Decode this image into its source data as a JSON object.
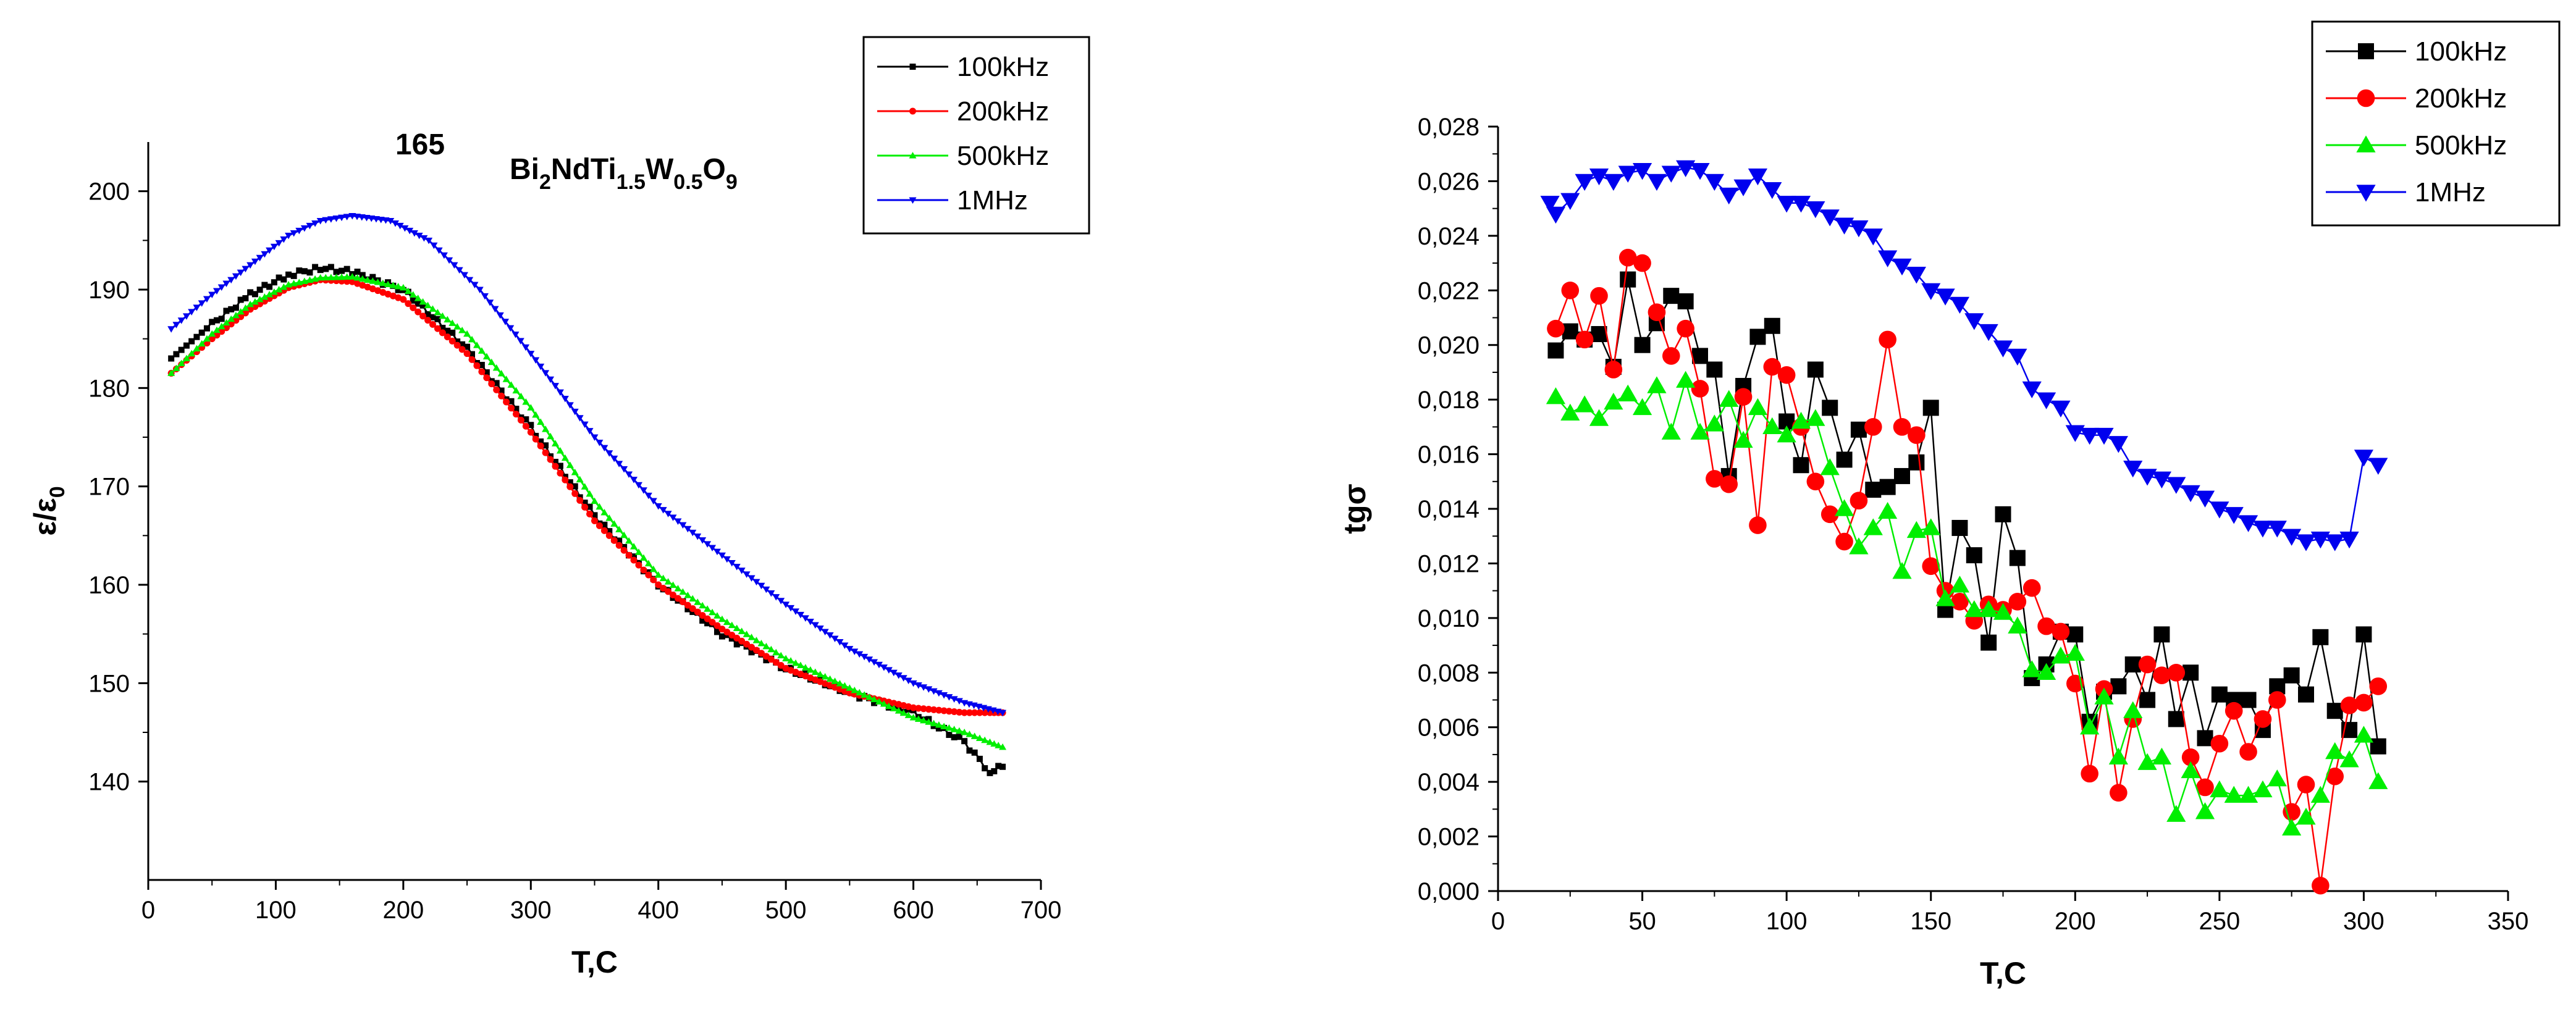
{
  "chart_data": [
    {
      "type": "scatter",
      "title_number": "165",
      "formula": {
        "parts": [
          {
            "t": "Bi",
            "sub": false
          },
          {
            "t": "2",
            "sub": true
          },
          {
            "t": "NdTi",
            "sub": false
          },
          {
            "t": "1.5",
            "sub": true
          },
          {
            "t": "W",
            "sub": false
          },
          {
            "t": "0.5",
            "sub": true
          },
          {
            "t": "O",
            "sub": false
          },
          {
            "t": "9",
            "sub": true
          }
        ]
      },
      "xlabel": "T,C",
      "ylabel_main": "ε/ε",
      "ylabel_sub": "0",
      "xlim": [
        0,
        700
      ],
      "ylim": [
        130,
        205
      ],
      "xticks": [
        0,
        100,
        200,
        300,
        400,
        500,
        600,
        700
      ],
      "yticks": [
        140,
        150,
        160,
        170,
        180,
        190,
        200
      ],
      "xticklabels": [
        "0",
        "100",
        "200",
        "300",
        "400",
        "500",
        "600",
        "700"
      ],
      "yticklabels": [
        "140",
        "150",
        "160",
        "170",
        "180",
        "190",
        "200"
      ],
      "legend_position": "top-right",
      "series": [
        {
          "name": "100kHz",
          "color": "#000000",
          "marker": "square",
          "x": [
            18,
            50,
            80,
            110,
            135,
            160,
            200,
            250,
            300,
            350,
            400,
            450,
            500,
            550,
            600,
            640,
            660,
            670
          ],
          "y": [
            183,
            186.5,
            189.5,
            191.5,
            192.2,
            191.8,
            190,
            184,
            176,
            167,
            160,
            155,
            151.5,
            149,
            147,
            144,
            141,
            141.5
          ]
        },
        {
          "name": "200kHz",
          "color": "#ff0000",
          "marker": "circle",
          "x": [
            18,
            50,
            80,
            110,
            135,
            160,
            200,
            250,
            300,
            350,
            400,
            450,
            500,
            550,
            600,
            640,
            660,
            670
          ],
          "y": [
            181.5,
            185,
            188,
            190.2,
            191,
            190.8,
            189,
            183.5,
            175.5,
            166.5,
            160,
            155.5,
            151.5,
            149,
            147.5,
            147,
            147,
            147
          ]
        },
        {
          "name": "500kHz",
          "color": "#00ee00",
          "marker": "triangle-up",
          "x": [
            18,
            50,
            80,
            110,
            135,
            160,
            200,
            250,
            300,
            350,
            400,
            450,
            500,
            550,
            600,
            640,
            660,
            670
          ],
          "y": [
            181.5,
            185.5,
            188.5,
            190.5,
            191.2,
            191.3,
            190.2,
            185.5,
            178,
            168.5,
            161,
            156.5,
            152.5,
            149.5,
            146.5,
            145,
            144,
            143.5
          ]
        },
        {
          "name": "1MHz",
          "color": "#0000ee",
          "marker": "triangle-down",
          "x": [
            18,
            50,
            80,
            110,
            135,
            160,
            190,
            220,
            260,
            300,
            350,
            400,
            450,
            500,
            550,
            600,
            640,
            670
          ],
          "y": [
            186,
            189.5,
            192.5,
            195.5,
            197,
            197.5,
            197,
            195,
            190,
            183.5,
            175,
            168,
            163,
            158,
            153.5,
            150,
            148,
            147
          ]
        }
      ]
    },
    {
      "type": "scatter",
      "xlabel": "T,C",
      "ylabel": "tgσ",
      "xlim": [
        0,
        350
      ],
      "ylim": [
        0,
        0.028
      ],
      "xticks": [
        0,
        50,
        100,
        150,
        200,
        250,
        300,
        350
      ],
      "yticks": [
        0,
        0.002,
        0.004,
        0.006,
        0.008,
        0.01,
        0.012,
        0.014,
        0.016,
        0.018,
        0.02,
        0.022,
        0.024,
        0.026,
        0.028
      ],
      "xticklabels": [
        "0",
        "50",
        "100",
        "150",
        "200",
        "250",
        "300",
        "350"
      ],
      "yticklabels": [
        "0,000",
        "0,002",
        "0,004",
        "0,006",
        "0,008",
        "0,010",
        "0,012",
        "0,014",
        "0,016",
        "0,018",
        "0,020",
        "0,022",
        "0,024",
        "0,026",
        "0,028"
      ],
      "legend_position": "top-right",
      "series": [
        {
          "name": "100kHz",
          "color": "#000000",
          "marker": "square",
          "x": [
            20,
            25,
            30,
            35,
            40,
            45,
            50,
            55,
            60,
            65,
            70,
            75,
            80,
            85,
            90,
            95,
            100,
            105,
            110,
            115,
            120,
            125,
            130,
            135,
            140,
            145,
            150,
            155,
            160,
            165,
            170,
            175,
            180,
            185,
            190,
            195,
            200,
            205,
            210,
            215,
            220,
            225,
            230,
            235,
            240,
            245,
            250,
            255,
            260,
            265,
            270,
            275,
            280,
            285,
            290,
            295,
            300,
            305
          ],
          "y": [
            0.0198,
            0.0205,
            0.0202,
            0.0204,
            0.0192,
            0.0224,
            0.02,
            0.0208,
            0.0218,
            0.0216,
            0.0196,
            0.0191,
            0.0152,
            0.0185,
            0.0203,
            0.0207,
            0.0172,
            0.0156,
            0.0191,
            0.0177,
            0.0158,
            0.0169,
            0.0147,
            0.0148,
            0.0152,
            0.0157,
            0.0177,
            0.0103,
            0.0133,
            0.0123,
            0.0091,
            0.0138,
            0.0122,
            0.0078,
            0.0083,
            0.0095,
            0.0094,
            0.0062,
            0.0073,
            0.0075,
            0.0083,
            0.007,
            0.0094,
            0.0063,
            0.008,
            0.0056,
            0.0072,
            0.007,
            0.007,
            0.0059,
            0.0075,
            0.0079,
            0.0072,
            0.0093,
            0.0066,
            0.0059,
            0.0094,
            0.0053
          ]
        },
        {
          "name": "200kHz",
          "color": "#ff0000",
          "marker": "circle",
          "x": [
            20,
            25,
            30,
            35,
            40,
            45,
            50,
            55,
            60,
            65,
            70,
            75,
            80,
            85,
            90,
            95,
            100,
            105,
            110,
            115,
            120,
            125,
            130,
            135,
            140,
            145,
            150,
            155,
            160,
            165,
            170,
            175,
            180,
            185,
            190,
            195,
            200,
            205,
            210,
            215,
            220,
            225,
            230,
            235,
            240,
            245,
            250,
            255,
            260,
            265,
            270,
            275,
            280,
            285,
            290,
            295,
            300,
            305
          ],
          "y": [
            0.0206,
            0.022,
            0.0202,
            0.0218,
            0.0191,
            0.0232,
            0.023,
            0.0212,
            0.0196,
            0.0206,
            0.0184,
            0.0151,
            0.0149,
            0.0181,
            0.0134,
            0.0192,
            0.0189,
            0.017,
            0.015,
            0.0138,
            0.0128,
            0.0143,
            0.017,
            0.0202,
            0.017,
            0.0167,
            0.0119,
            0.011,
            0.0106,
            0.0099,
            0.0105,
            0.0103,
            0.0106,
            0.0111,
            0.0097,
            0.0095,
            0.0076,
            0.0043,
            0.0074,
            0.0036,
            0.0063,
            0.0083,
            0.0079,
            0.008,
            0.0049,
            0.0038,
            0.0054,
            0.0066,
            0.0051,
            0.0063,
            0.007,
            0.0029,
            0.0039,
            0.0002,
            0.0042,
            0.0068,
            0.0069,
            0.0075
          ]
        },
        {
          "name": "500kHz",
          "color": "#00ee00",
          "marker": "triangle-up",
          "x": [
            20,
            25,
            30,
            35,
            40,
            45,
            50,
            55,
            60,
            65,
            70,
            75,
            80,
            85,
            90,
            95,
            100,
            105,
            110,
            115,
            120,
            125,
            130,
            135,
            140,
            145,
            150,
            155,
            160,
            165,
            170,
            175,
            180,
            185,
            190,
            195,
            200,
            205,
            210,
            215,
            220,
            225,
            230,
            235,
            240,
            245,
            250,
            255,
            260,
            265,
            270,
            275,
            280,
            285,
            290,
            295,
            300,
            305
          ],
          "y": [
            0.0181,
            0.0175,
            0.0178,
            0.0173,
            0.0179,
            0.0182,
            0.0177,
            0.0185,
            0.0168,
            0.0187,
            0.0168,
            0.0171,
            0.018,
            0.0165,
            0.0177,
            0.017,
            0.0167,
            0.0172,
            0.0173,
            0.0155,
            0.014,
            0.0126,
            0.0133,
            0.0139,
            0.0117,
            0.0132,
            0.0133,
            0.0107,
            0.0112,
            0.0103,
            0.0103,
            0.0102,
            0.0097,
            0.0081,
            0.008,
            0.0086,
            0.0087,
            0.006,
            0.0071,
            0.0049,
            0.0066,
            0.0047,
            0.0049,
            0.0028,
            0.0044,
            0.0029,
            0.0037,
            0.0035,
            0.0035,
            0.0037,
            0.0041,
            0.0023,
            0.0027,
            0.0035,
            0.0051,
            0.0048,
            0.0057,
            0.004
          ]
        },
        {
          "name": "1MHz",
          "color": "#0000ee",
          "marker": "triangle-down",
          "x": [
            18,
            20,
            25,
            30,
            35,
            40,
            45,
            50,
            55,
            60,
            65,
            70,
            75,
            80,
            85,
            90,
            95,
            100,
            105,
            110,
            115,
            120,
            125,
            130,
            135,
            140,
            145,
            150,
            155,
            160,
            165,
            170,
            175,
            180,
            185,
            190,
            195,
            200,
            205,
            210,
            215,
            220,
            225,
            230,
            235,
            240,
            245,
            250,
            255,
            260,
            265,
            270,
            275,
            280,
            285,
            290,
            295,
            300,
            305
          ],
          "y": [
            0.0252,
            0.0248,
            0.0253,
            0.026,
            0.0262,
            0.026,
            0.0263,
            0.0264,
            0.026,
            0.0263,
            0.0265,
            0.0264,
            0.026,
            0.0255,
            0.0258,
            0.0262,
            0.0257,
            0.0252,
            0.0252,
            0.025,
            0.0247,
            0.0244,
            0.0243,
            0.024,
            0.0232,
            0.0229,
            0.0226,
            0.022,
            0.0218,
            0.0215,
            0.0209,
            0.0205,
            0.0199,
            0.0196,
            0.0184,
            0.018,
            0.0177,
            0.0168,
            0.0167,
            0.0167,
            0.0164,
            0.0155,
            0.0152,
            0.0151,
            0.0149,
            0.0146,
            0.0144,
            0.014,
            0.0138,
            0.0135,
            0.0133,
            0.0133,
            0.013,
            0.0128,
            0.0129,
            0.0128,
            0.0129,
            0.0159,
            0.0156
          ]
        }
      ]
    }
  ]
}
